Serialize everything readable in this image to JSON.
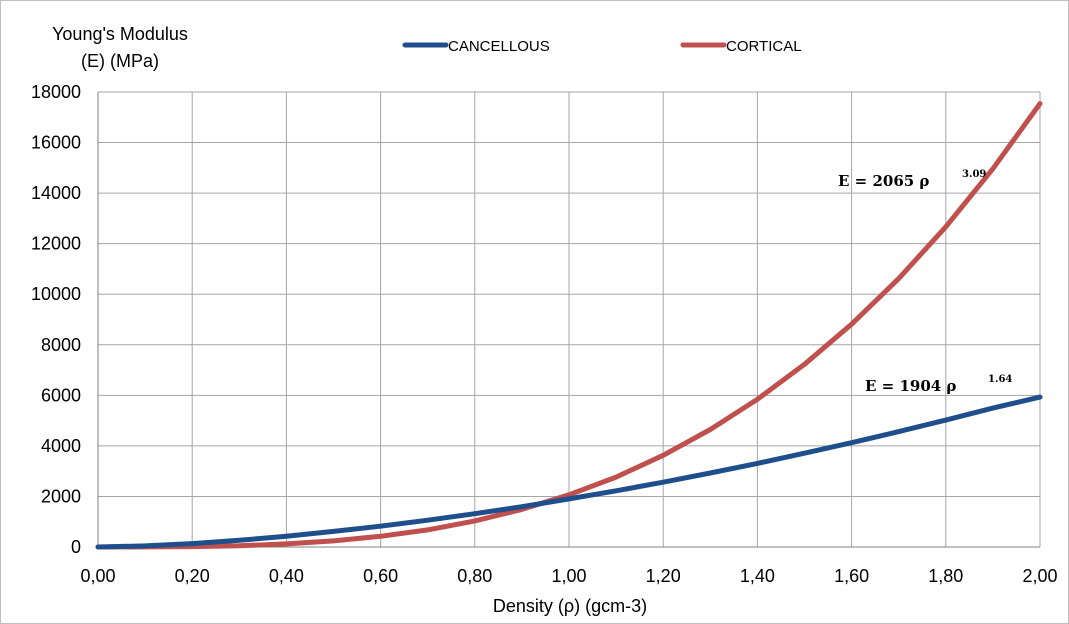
{
  "chart_data": {
    "type": "line",
    "ylabel_line1": "Young's Modulus",
    "ylabel_line2": "(E) (MPa)",
    "xlabel": "Density (ρ) (gcm-3)",
    "xlim": [
      0,
      2
    ],
    "ylim": [
      0,
      18000
    ],
    "x_ticks": [
      "0,00",
      "0,20",
      "0,40",
      "0,60",
      "0,80",
      "1,00",
      "1,20",
      "1,40",
      "1,60",
      "1,80",
      "2,00"
    ],
    "y_ticks": [
      "0",
      "2000",
      "4000",
      "6000",
      "8000",
      "10000",
      "12000",
      "14000",
      "16000",
      "18000"
    ],
    "grid": true,
    "legend_position": "top",
    "series": [
      {
        "name": "CANCELLOUS",
        "color": "#1f4e8c",
        "coef": 1904,
        "exponent": 1.64,
        "equation_base": "E = 1904  ρ",
        "equation_exp": "1.64",
        "x": [
          0,
          0.1,
          0.2,
          0.3,
          0.4,
          0.5,
          0.6,
          0.7,
          0.8,
          0.9,
          1.0,
          1.1,
          1.2,
          1.3,
          1.4,
          1.5,
          1.6,
          1.7,
          1.8,
          1.9,
          2.0
        ],
        "y": [
          0,
          44,
          135,
          264,
          425,
          616,
          823,
          1061,
          1316,
          1595,
          1904,
          2225,
          2565,
          2928,
          3309,
          3710,
          4128,
          4567,
          5021,
          5496,
          5929
        ]
      },
      {
        "name": "CORTICAL",
        "color": "#c0504d",
        "coef": 2065,
        "exponent": 3.09,
        "equation_base": "E = 2065  ρ",
        "equation_exp": "3.09",
        "x": [
          0,
          0.1,
          0.2,
          0.3,
          0.4,
          0.5,
          0.6,
          0.7,
          0.8,
          0.9,
          1.0,
          1.1,
          1.2,
          1.3,
          1.4,
          1.5,
          1.6,
          1.7,
          1.8,
          1.9,
          2.0
        ],
        "y": [
          0,
          2,
          14,
          49,
          121,
          243,
          424,
          677,
          1031,
          1488,
          2065,
          2766,
          3627,
          4649,
          5842,
          7227,
          8815,
          10620,
          12667,
          14964,
          17540
        ]
      }
    ]
  }
}
